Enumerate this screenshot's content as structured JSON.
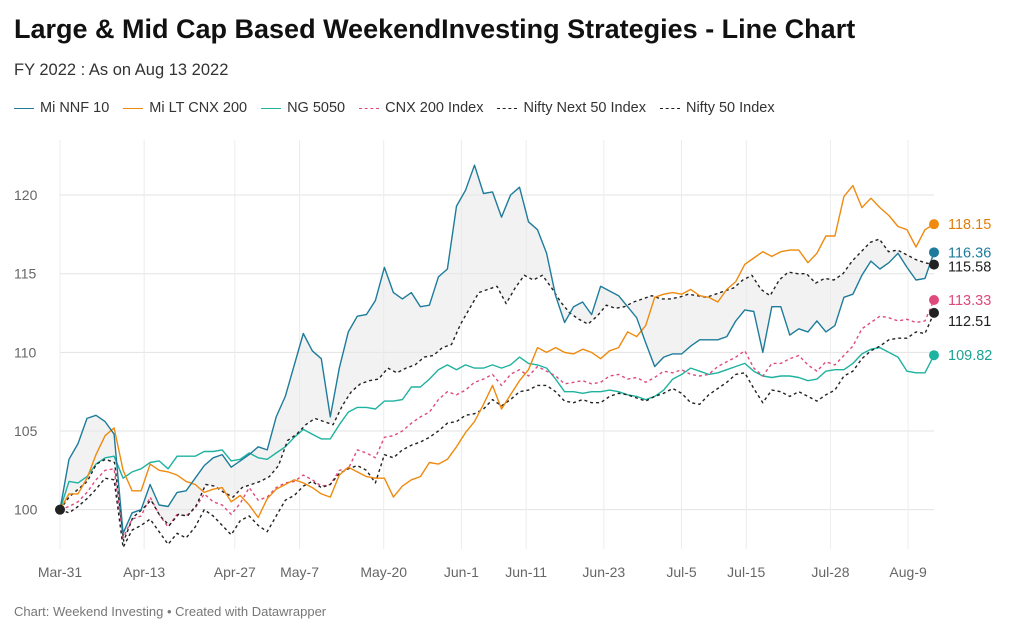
{
  "title": "Large & Mid Cap Based WeekendInvesting Strategies - Line Chart",
  "subtitle": "FY 2022 : As on Aug 13 2022",
  "footer": "Chart: Weekend Investing • Created with Datawrapper",
  "chart_data": {
    "type": "line",
    "x_start": "2022-03-31",
    "x_end": "2022-08-13",
    "x_ticks": [
      {
        "label": "Mar-31",
        "date": "2022-03-31"
      },
      {
        "label": "Apr-13",
        "date": "2022-04-13"
      },
      {
        "label": "Apr-27",
        "date": "2022-04-27"
      },
      {
        "label": "May-7",
        "date": "2022-05-07"
      },
      {
        "label": "May-20",
        "date": "2022-05-20"
      },
      {
        "label": "Jun-1",
        "date": "2022-06-01"
      },
      {
        "label": "Jun-11",
        "date": "2022-06-11"
      },
      {
        "label": "Jun-23",
        "date": "2022-06-23"
      },
      {
        "label": "Jul-5",
        "date": "2022-07-05"
      },
      {
        "label": "Jul-15",
        "date": "2022-07-15"
      },
      {
        "label": "Jul-28",
        "date": "2022-07-28"
      },
      {
        "label": "Aug-9",
        "date": "2022-08-09"
      }
    ],
    "ylim": [
      97.5,
      123.5
    ],
    "y_ticks": [
      100,
      105,
      110,
      115,
      120
    ],
    "grid": true,
    "legend_position": "top-left",
    "shade_between": [
      "Mi NNF 10",
      "Nifty Next 50 Index"
    ],
    "series": [
      {
        "name": "Mi NNF 10",
        "color": "#1d7c9b",
        "dash": false,
        "end_label": "116.36",
        "values": [
          100,
          103.2,
          104.2,
          105.8,
          106.0,
          105.6,
          104.8,
          98.5,
          99.8,
          100,
          101.6,
          100.3,
          100.2,
          101.1,
          101.2,
          102.0,
          102.8,
          103.3,
          103.5,
          102.7,
          103.1,
          103.5,
          104.0,
          103.8,
          105.9,
          107.2,
          109.2,
          111.2,
          110.1,
          109.6,
          105.9,
          109.0,
          111.3,
          112.3,
          112.4,
          113.3,
          115.4,
          113.8,
          113.4,
          113.8,
          112.9,
          113.0,
          114.8,
          115.3,
          119.3,
          120.3,
          121.9,
          120.1,
          120.2,
          118.6,
          120.0,
          120.5,
          118.3,
          117.8,
          116.3,
          113.6,
          111.9,
          112.9,
          113.2,
          112.4,
          114.2,
          113.9,
          113.6,
          112.9,
          112.2,
          110.6,
          109.1,
          109.7,
          109.9,
          109.9,
          110.4,
          110.8,
          110.8,
          110.8,
          111.0,
          112.0,
          112.7,
          112.6,
          110.0,
          112.9,
          112.9,
          111.1,
          111.5,
          111.3,
          112.0,
          111.3,
          111.7,
          113.5,
          113.7,
          114.9,
          115.8,
          115.3,
          115.7,
          116.3,
          115.4,
          114.6,
          114.7,
          116.36
        ]
      },
      {
        "name": "Mi LT CNX 200",
        "color": "#ef8a0f",
        "dash": false,
        "end_label": "118.15",
        "values": [
          100,
          101.0,
          101.0,
          102.0,
          103.5,
          104.7,
          105.2,
          102.5,
          101.2,
          101.2,
          102.9,
          102.5,
          102.4,
          102.2,
          101.8,
          101.6,
          101.1,
          101.3,
          101.4,
          100.5,
          100.9,
          100.3,
          99.5,
          100.7,
          101.3,
          101.6,
          101.9,
          101.7,
          101.4,
          101.0,
          100.8,
          102.2,
          102.7,
          102.4,
          102.1,
          102.0,
          102.0,
          100.8,
          101.5,
          101.9,
          102.1,
          103.0,
          102.9,
          103.2,
          104.0,
          104.9,
          105.6,
          106.7,
          107.9,
          106.4,
          107.3,
          108.2,
          108.9,
          110.3,
          110.0,
          110.3,
          110.0,
          109.9,
          110.2,
          110.0,
          109.6,
          110.1,
          110.3,
          111.3,
          111.0,
          111.7,
          113.5,
          113.7,
          113.8,
          113.7,
          114.0,
          113.6,
          113.5,
          113.2,
          114.0,
          114.5,
          115.6,
          116.0,
          116.4,
          116.1,
          116.4,
          116.5,
          116.5,
          115.7,
          116.3,
          117.4,
          117.4,
          119.9,
          120.6,
          119.2,
          119.8,
          119.2,
          118.7,
          118.0,
          117.8,
          116.7,
          117.8,
          118.15
        ]
      },
      {
        "name": "NG 5050",
        "color": "#1eb2a0",
        "dash": false,
        "end_label": "109.82",
        "values": [
          100,
          101.8,
          101.7,
          102.1,
          102.9,
          103.3,
          103.4,
          102.0,
          102.4,
          102.6,
          103.0,
          103.1,
          102.6,
          103.4,
          103.4,
          103.4,
          103.7,
          103.7,
          103.8,
          103.1,
          103.2,
          103.6,
          103.3,
          103.2,
          103.6,
          104.0,
          104.6,
          105.1,
          104.8,
          104.5,
          104.5,
          105.4,
          106.2,
          106.5,
          106.5,
          106.4,
          106.9,
          106.9,
          107.0,
          107.8,
          107.8,
          108.3,
          108.9,
          109.2,
          108.9,
          109.2,
          109.0,
          109.0,
          109.2,
          109.0,
          109.2,
          109.7,
          109.3,
          109.2,
          109.0,
          108.3,
          107.5,
          107.5,
          107.4,
          107.5,
          107.5,
          107.6,
          107.5,
          107.3,
          107.2,
          107.0,
          107.2,
          107.6,
          108.3,
          108.6,
          109.0,
          108.8,
          108.6,
          108.7,
          108.9,
          109.1,
          109.3,
          108.8,
          108.5,
          108.4,
          108.5,
          108.5,
          108.4,
          108.2,
          108.3,
          108.8,
          108.9,
          108.9,
          109.3,
          109.9,
          110.2,
          110.3,
          110.0,
          109.7,
          108.8,
          108.7,
          108.7,
          109.82
        ]
      },
      {
        "name": "CNX 200 Index",
        "color": "#e0497c",
        "dash": true,
        "end_label": "113.33",
        "values": [
          100,
          100.2,
          100.5,
          101.1,
          101.9,
          102.5,
          102.6,
          98.2,
          99.4,
          99.6,
          100.8,
          99.7,
          98.9,
          99.7,
          99.6,
          100.1,
          101.0,
          100.5,
          100.3,
          99.7,
          100.4,
          101.4,
          100.6,
          100.8,
          101.4,
          101.7,
          101.8,
          102.2,
          101.9,
          101.5,
          101.6,
          102.5,
          102.6,
          103.8,
          103.6,
          103.3,
          104.6,
          104.7,
          105.0,
          105.5,
          105.9,
          106.2,
          107.0,
          107.5,
          107.3,
          107.6,
          108.1,
          108.3,
          108.6,
          107.9,
          108.6,
          108.9,
          108.5,
          109.1,
          108.8,
          108.5,
          108.0,
          108.1,
          108.2,
          108.0,
          108.1,
          108.5,
          108.6,
          108.3,
          108.4,
          108.1,
          108.4,
          108.8,
          108.7,
          108.9,
          108.6,
          108.5,
          108.6,
          109.1,
          109.4,
          109.7,
          110.1,
          109.0,
          108.5,
          109.3,
          109.3,
          109.6,
          109.8,
          109.2,
          108.8,
          109.4,
          109.2,
          109.8,
          110.4,
          111.5,
          111.9,
          112.3,
          112.2,
          112.0,
          112.1,
          111.9,
          112.0,
          113.33
        ]
      },
      {
        "name": "Nifty Next 50 Index",
        "color": "#222222",
        "dash": true,
        "end_label": "115.58",
        "values": [
          100,
          100.8,
          101.3,
          101.8,
          102.9,
          103.2,
          103.0,
          98.0,
          99.5,
          100.0,
          100.6,
          99.6,
          99.0,
          99.7,
          99.6,
          100.3,
          101.6,
          101.5,
          101.1,
          100.8,
          101.4,
          101.6,
          101.8,
          102.1,
          102.8,
          104.4,
          104.8,
          105.4,
          105.8,
          105.6,
          105.4,
          106.6,
          107.5,
          108.0,
          108.2,
          108.3,
          109.0,
          108.7,
          109.0,
          109.2,
          109.7,
          109.8,
          110.3,
          110.5,
          111.8,
          112.8,
          113.8,
          114.0,
          114.2,
          113.1,
          114.1,
          114.9,
          114.6,
          114.9,
          114.1,
          113.2,
          112.5,
          112.1,
          111.8,
          112.3,
          113.0,
          112.8,
          112.9,
          113.2,
          113.4,
          113.6,
          113.4,
          113.4,
          113.5,
          113.7,
          113.6,
          113.5,
          113.7,
          113.9,
          114.1,
          114.6,
          114.9,
          114.0,
          113.6,
          114.6,
          115.1,
          115.0,
          115.0,
          114.4,
          114.7,
          114.6,
          115.0,
          115.8,
          116.4,
          117.0,
          117.2,
          116.4,
          116.5,
          116.2,
          115.9,
          115.7,
          115.58
        ]
      },
      {
        "name": "Nifty 50 Index",
        "color": "#222222",
        "dash": true,
        "end_label": "112.51",
        "values": [
          100,
          99.8,
          100.2,
          100.7,
          101.3,
          102.0,
          101.9,
          97.6,
          98.7,
          99.0,
          99.4,
          98.6,
          97.8,
          98.5,
          98.2,
          98.9,
          100.0,
          99.6,
          99.0,
          98.4,
          99.3,
          99.6,
          99.0,
          98.6,
          99.6,
          100.6,
          100.9,
          101.5,
          101.8,
          101.4,
          101.6,
          102.3,
          102.6,
          102.8,
          102.5,
          101.7,
          103.5,
          103.3,
          103.8,
          104.1,
          104.3,
          104.6,
          105.0,
          105.5,
          105.6,
          106.0,
          106.1,
          106.4,
          107.0,
          106.6,
          107.0,
          107.5,
          107.6,
          107.9,
          107.9,
          107.5,
          106.9,
          106.8,
          107.0,
          106.8,
          106.8,
          107.2,
          107.4,
          107.3,
          107.1,
          106.9,
          107.2,
          107.4,
          107.7,
          107.4,
          106.8,
          106.7,
          107.3,
          107.7,
          108.1,
          108.6,
          108.7,
          107.7,
          106.8,
          107.6,
          107.5,
          107.2,
          107.5,
          107.2,
          106.9,
          107.3,
          107.6,
          108.5,
          108.8,
          109.6,
          110.1,
          110.4,
          110.8,
          110.9,
          110.9,
          111.3,
          111.2,
          112.51
        ]
      }
    ]
  }
}
